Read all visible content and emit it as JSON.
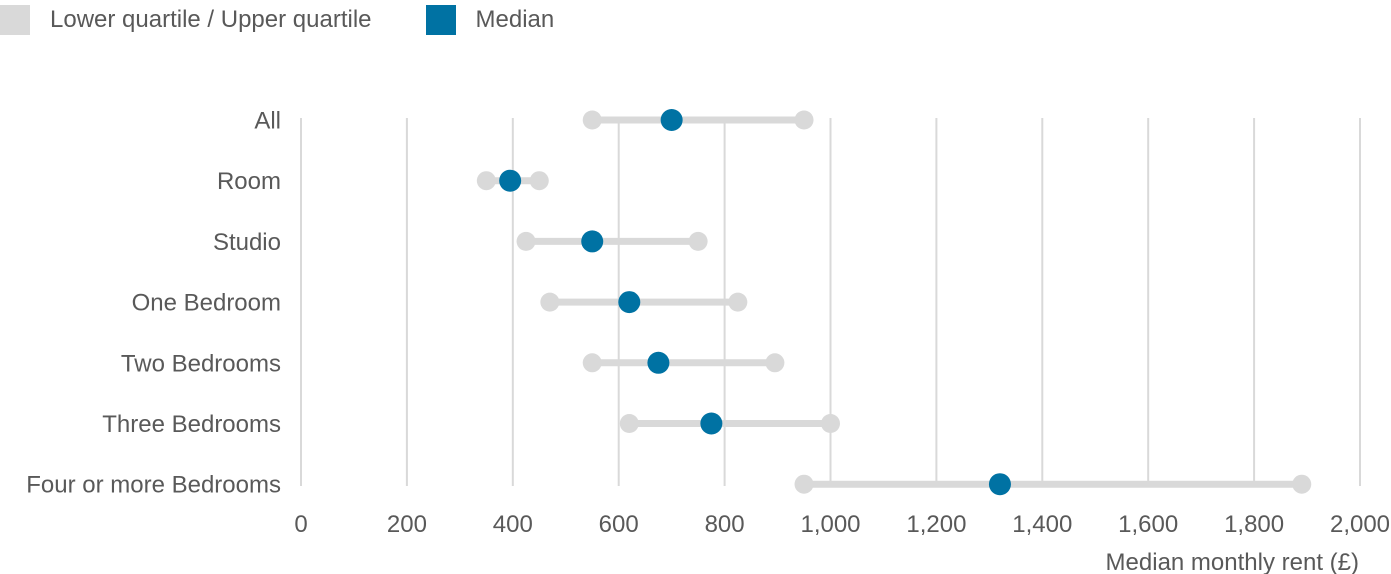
{
  "legend": {
    "items": [
      {
        "label": "Lower quartile / Upper quartile",
        "color": "#d9d9d9"
      },
      {
        "label": "Median",
        "color": "#0072a3"
      }
    ]
  },
  "chart_data": {
    "type": "dumbbell",
    "categories": [
      "All",
      "Room",
      "Studio",
      "One Bedroom",
      "Two Bedrooms",
      "Three Bedrooms",
      "Four or more Bedrooms"
    ],
    "series": [
      {
        "name": "Lower quartile",
        "values": [
          550,
          350,
          425,
          470,
          550,
          620,
          950
        ]
      },
      {
        "name": "Median",
        "values": [
          700,
          395,
          550,
          620,
          675,
          775,
          1320
        ]
      },
      {
        "name": "Upper quartile",
        "values": [
          950,
          450,
          750,
          825,
          895,
          1000,
          1890
        ]
      }
    ],
    "xlabel": "Median monthly rent (£)",
    "ylabel": "",
    "xlim": [
      0,
      2000
    ],
    "xticks": [
      0,
      200,
      400,
      600,
      800,
      1000,
      1200,
      1400,
      1600,
      1800,
      2000
    ],
    "xtick_labels": [
      "0",
      "200",
      "400",
      "600",
      "800",
      "1,000",
      "1,200",
      "1,400",
      "1,600",
      "1,800",
      "2,000"
    ],
    "grid": "vertical",
    "legend_position": "top-left",
    "colors": {
      "quartile": "#d9d9d9",
      "median": "#0072a3",
      "grid": "#d9d9d9"
    }
  }
}
